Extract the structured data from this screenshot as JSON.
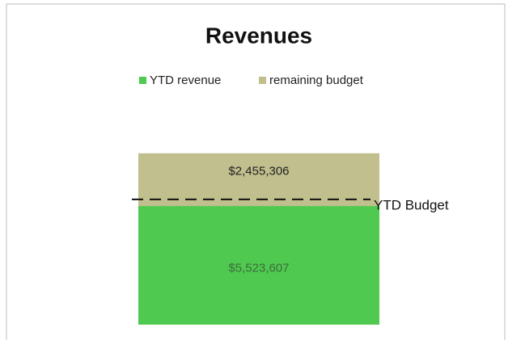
{
  "chart_data": {
    "type": "stacked_bar",
    "title": "Revenues",
    "categories": [
      null
    ],
    "series": [
      {
        "name": "YTD revenue",
        "color": "#4fc94f",
        "values": [
          5523607
        ],
        "value_labels": [
          "$5,523,607"
        ]
      },
      {
        "name": "remaining budget",
        "color": "#c0bf8d",
        "values": [
          2455306
        ],
        "value_labels": [
          "$2,455,306"
        ]
      }
    ],
    "ylim": [
      0,
      10000000
    ],
    "legend": "top",
    "annotations": [
      {
        "label": "YTD Budget",
        "value": 5830000
      }
    ]
  }
}
